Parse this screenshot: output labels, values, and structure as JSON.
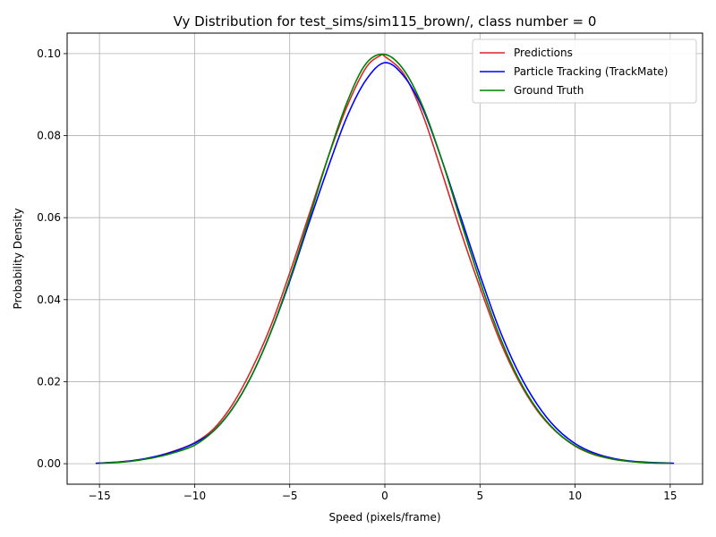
{
  "chart_data": {
    "type": "line",
    "title": "Vy Distribution for test_sims/sim115_brown/, class number = 0",
    "xlabel": "Speed (pixels/frame)",
    "ylabel": "Probability Density",
    "xlim": [
      -16.7,
      16.7
    ],
    "ylim": [
      -0.005,
      0.105
    ],
    "xticks": [
      -15,
      -10,
      -5,
      0,
      5,
      10,
      15
    ],
    "xtick_labels": [
      "−15",
      "−10",
      "−5",
      "0",
      "5",
      "10",
      "15"
    ],
    "yticks": [
      0.0,
      0.02,
      0.04,
      0.06,
      0.08,
      0.1
    ],
    "ytick_labels": [
      "0.00",
      "0.02",
      "0.04",
      "0.06",
      "0.08",
      "0.10"
    ],
    "grid": true,
    "legend_position": "top-right",
    "series": [
      {
        "name": "Predictions",
        "color": "#d62728",
        "x": [
          -15.2,
          -14,
          -13,
          -12,
          -11,
          -10,
          -9,
          -8,
          -7,
          -6,
          -5,
          -4,
          -3,
          -2,
          -1,
          -0.25,
          0,
          1,
          2,
          3,
          4,
          5,
          6,
          7,
          8,
          9,
          10,
          11,
          12,
          13,
          14,
          15
        ],
        "y": [
          0.0001,
          0.0004,
          0.0009,
          0.0018,
          0.0032,
          0.0051,
          0.0085,
          0.0145,
          0.023,
          0.0335,
          0.0465,
          0.0605,
          0.0745,
          0.087,
          0.0965,
          0.0995,
          0.0993,
          0.095,
          0.085,
          0.071,
          0.0565,
          0.043,
          0.0305,
          0.0205,
          0.013,
          0.0078,
          0.0043,
          0.0022,
          0.0011,
          0.0005,
          0.0002,
          0.0001
        ]
      },
      {
        "name": "Particle Tracking (TrackMate)",
        "color": "#0000ff",
        "x": [
          -15.2,
          -14,
          -13,
          -12,
          -11,
          -10,
          -9,
          -8,
          -7,
          -6,
          -5,
          -4,
          -3,
          -2,
          -1,
          0,
          1,
          2,
          3,
          4,
          5,
          6,
          7,
          8,
          9,
          10,
          11,
          12,
          13,
          14,
          15.2
        ],
        "y": [
          0.0001,
          0.0004,
          0.0009,
          0.0018,
          0.0031,
          0.005,
          0.008,
          0.0135,
          0.0215,
          0.032,
          0.0445,
          0.0585,
          0.072,
          0.0845,
          0.0935,
          0.0978,
          0.0945,
          0.0865,
          0.074,
          0.06,
          0.046,
          0.033,
          0.0225,
          0.0145,
          0.0087,
          0.0049,
          0.0026,
          0.0013,
          0.0006,
          0.0003,
          0.0001
        ]
      },
      {
        "name": "Ground Truth",
        "color": "#008000",
        "x": [
          -15,
          -14,
          -13,
          -12,
          -11,
          -10,
          -9,
          -8,
          -7,
          -6,
          -5,
          -4,
          -3,
          -2,
          -1,
          0,
          1,
          2,
          3,
          4,
          5,
          6,
          7,
          8,
          9,
          10,
          11,
          12,
          13,
          14,
          15
        ],
        "y": [
          0.0001,
          0.0003,
          0.0008,
          0.0016,
          0.0028,
          0.0045,
          0.008,
          0.0135,
          0.0215,
          0.032,
          0.045,
          0.0595,
          0.0745,
          0.088,
          0.0975,
          0.0998,
          0.096,
          0.087,
          0.074,
          0.059,
          0.0445,
          0.0315,
          0.021,
          0.0133,
          0.0079,
          0.0044,
          0.0023,
          0.0011,
          0.0005,
          0.0002,
          0.0001
        ]
      }
    ]
  }
}
